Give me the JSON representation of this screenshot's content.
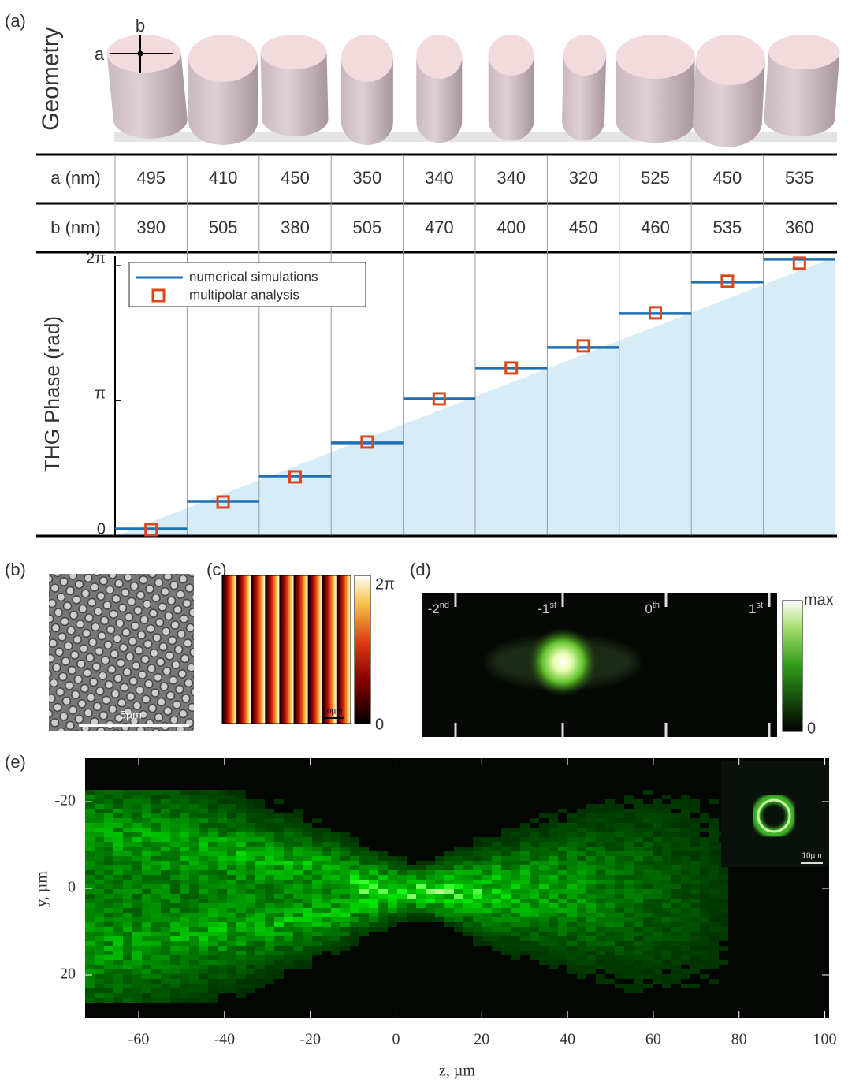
{
  "panel_labels": [
    "(a)",
    "(b)",
    "(c)",
    "(d)",
    "(e)"
  ],
  "geometry": {
    "label": "Geometry",
    "axis_a": "a",
    "axis_b": "b"
  },
  "table": {
    "rows": [
      [
        "a (nm)",
        "495",
        "410",
        "450",
        "350",
        "340",
        "340",
        "320",
        "525",
        "450",
        "535"
      ],
      [
        "b (nm)",
        "390",
        "505",
        "380",
        "505",
        "470",
        "400",
        "450",
        "460",
        "535",
        "360"
      ]
    ]
  },
  "panel_b": {
    "scale_bar": "5µm"
  },
  "panel_c": {
    "colorbar": [
      "2π",
      "0"
    ],
    "scale_bar": "10µm"
  },
  "panel_d": {
    "orders": [
      {
        "n": "-2",
        "suffix": "nd"
      },
      {
        "n": "-1",
        "suffix": "st"
      },
      {
        "n": "0",
        "suffix": "th"
      },
      {
        "n": "1",
        "suffix": "st"
      }
    ],
    "colorbar": [
      "max",
      "0"
    ]
  },
  "chart_data": [
    {
      "type": "step",
      "ylabel": "THG Phase (rad)",
      "ylim": [
        0,
        6.5
      ],
      "yticks": [
        {
          "value": 0,
          "label": "0"
        },
        {
          "value": 3.1416,
          "label": "π"
        },
        {
          "value": 6.2832,
          "label": "2π"
        }
      ],
      "legend": "upper left",
      "series": [
        {
          "name": "numerical simulations",
          "color": "#1f6fb5",
          "values": [
            0.165,
            0.806,
            1.392,
            2.162,
            3.187,
            3.902,
            4.378,
            5.166,
            5.898,
            6.43
          ]
        },
        {
          "name": "multipolar analysis",
          "color": "#d9481c",
          "values": [
            0.147,
            0.788,
            1.374,
            2.18,
            3.187,
            3.902,
            4.415,
            5.184,
            5.917,
            6.338
          ]
        }
      ]
    },
    {
      "type": "image",
      "xlabel": "z, µm",
      "ylabel": "y, µm",
      "xlim": [
        -72.5,
        101
      ],
      "ylim": [
        -30,
        30
      ],
      "yreverse": true,
      "xticks": [
        -60,
        -40,
        -20,
        0,
        20,
        40,
        60,
        80,
        100
      ],
      "yticks": [
        -20,
        0,
        20
      ],
      "inset_scale_bar": "10µm"
    }
  ]
}
